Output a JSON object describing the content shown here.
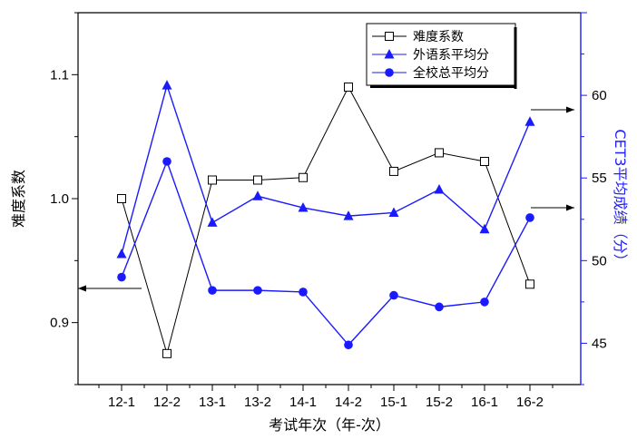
{
  "chart_data": {
    "type": "line",
    "categories": [
      "12-1",
      "12-2",
      "13-1",
      "13-2",
      "14-1",
      "14-2",
      "15-1",
      "15-2",
      "16-1",
      "16-2"
    ],
    "xlabel": "考试年次（年-次）",
    "ylabel_left": "难度系数",
    "ylabel_right": "CET3平均成绩（分）",
    "ylim_left": [
      0.85,
      1.15
    ],
    "yticks_left": [
      "0.9",
      "1.0",
      "1.1"
    ],
    "ylim_right": [
      42.5,
      65
    ],
    "yticks_right": [
      "45",
      "50",
      "55",
      "60"
    ],
    "grid": false,
    "legend_position": "top-right",
    "series": [
      {
        "name": "难度系数",
        "axis": "left",
        "marker": "open-square",
        "color": "#000000",
        "values": [
          1.0,
          0.875,
          1.015,
          1.015,
          1.017,
          1.09,
          1.022,
          1.037,
          1.03,
          0.931
        ]
      },
      {
        "name": "外语系平均分",
        "axis": "right",
        "marker": "triangle",
        "color": "#1a1aff",
        "values": [
          50.4,
          60.6,
          52.3,
          53.9,
          53.2,
          52.7,
          52.9,
          54.3,
          51.9,
          58.4
        ]
      },
      {
        "name": "全校总平均分",
        "axis": "right",
        "marker": "circle",
        "color": "#1a1aff",
        "values": [
          49.0,
          56.0,
          48.2,
          48.2,
          48.1,
          44.9,
          47.9,
          47.2,
          47.5,
          52.6
        ]
      }
    ]
  }
}
